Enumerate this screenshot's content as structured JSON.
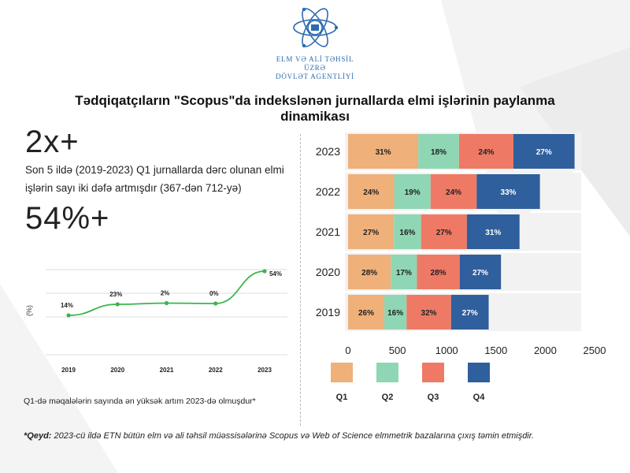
{
  "header": {
    "agency_line1": "ELM VƏ ALİ TƏHSİL ÜZRƏ",
    "agency_line2": "DÖVLƏT AGENTLİYİ",
    "title": "Tədqiqatçıların \"Scopus\"da indekslənən jurnallarda elmi işlərinin paylanma dinamikası"
  },
  "stats": {
    "stat1_value": "2x+",
    "stat1_text": "Son 5 ildə (2019-2023) Q1 jurnallarda dərc olunan elmi işlərin sayı iki dəfə artmışdır (367-dən 712-yə)",
    "stat2_value": "54%+"
  },
  "line_note": "Q1-də məqalələrin sayında ən yüksək artım 2023-də olmuşdur*",
  "footnote": {
    "label": "*Qeyd:",
    "text": " 2023-cü ildə ETN bütün elm və ali təhsil müəssisələrinə Scopus və Web of Science elmmetrik bazalarına çıxış təmin etmişdir."
  },
  "colors": {
    "Q1": "#efb07a",
    "Q2": "#8fd6b4",
    "Q3": "#ee7a66",
    "Q4": "#2f5f9c",
    "line": "#3bb54a",
    "logo": "#2b6bb0"
  },
  "chart_data": [
    {
      "type": "line",
      "ylabel": "(%)",
      "x": [
        "2019",
        "2020",
        "2021",
        "2022",
        "2023"
      ],
      "series": [
        {
          "values": [
            14,
            23,
            2,
            0,
            54
          ],
          "point_labels": [
            "14%",
            "23%",
            "2%",
            "0%",
            "54%"
          ]
        }
      ],
      "grid": true
    },
    {
      "type": "bar",
      "orientation": "horizontal",
      "stacked": true,
      "categories": [
        "2023",
        "2022",
        "2021",
        "2020",
        "2019"
      ],
      "series": [
        {
          "name": "Q1",
          "values": [
            712,
            467,
            465,
            434,
            367
          ],
          "labels": [
            "31%",
            "24%",
            "27%",
            "28%",
            "26%"
          ]
        },
        {
          "name": "Q2",
          "values": [
            413,
            370,
            275,
            264,
            226
          ],
          "labels": [
            "18%",
            "19%",
            "16%",
            "17%",
            "16%"
          ]
        },
        {
          "name": "Q3",
          "values": [
            552,
            467,
            465,
            434,
            452
          ],
          "labels": [
            "24%",
            "24%",
            "27%",
            "28%",
            "32%"
          ]
        },
        {
          "name": "Q4",
          "values": [
            620,
            642,
            534,
            419,
            381
          ],
          "labels": [
            "27%",
            "33%",
            "31%",
            "27%",
            "27%"
          ]
        }
      ],
      "xlim": [
        0,
        2500
      ],
      "xticks": [
        "0",
        "500",
        "1000",
        "1500",
        "2000",
        "2500"
      ],
      "legend": "bottom"
    }
  ]
}
